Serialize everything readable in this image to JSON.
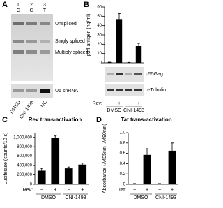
{
  "panel_a": {
    "letter": "A",
    "lane_numbers": [
      "1",
      "2",
      "3"
    ],
    "lane_codes": [
      "C",
      "C",
      "T"
    ],
    "band_labels": [
      "Unspliced",
      "Singly spliced",
      "Multiply spliced"
    ],
    "loading_label": "U6 snRNA",
    "lanes": [
      "DMSO",
      "CNI-1493",
      "NC"
    ]
  },
  "chart_data": [
    {
      "type": "bar",
      "panel": "B",
      "ylabel": "p24 antigen (ng/ml)",
      "categories": [
        "−",
        "+",
        "−",
        "+"
      ],
      "groups": [
        "DMSO",
        "CNI-1493"
      ],
      "row_label": "Rev:",
      "blot_labels": [
        "p55Gag",
        "α-Tubulin"
      ],
      "values": [
        0.5,
        47,
        0.3,
        18
      ],
      "errors": [
        0.2,
        6,
        0.2,
        3
      ],
      "color": "#000000",
      "ylim": [
        0,
        60
      ],
      "yticks": [
        0,
        10,
        20,
        30,
        40,
        50,
        60
      ]
    },
    {
      "type": "bar",
      "panel": "C",
      "title": "Rev trans-activation",
      "ylabel": "Luciferase (counts/10 s)",
      "categories": [
        "−",
        "+",
        "−",
        "+"
      ],
      "groups": [
        "DMSO",
        "CNI-1493"
      ],
      "row_label": "Rev:",
      "values": [
        290000,
        990000,
        340000,
        420000
      ],
      "errors": [
        50000,
        40000,
        30000,
        30000
      ],
      "color": "#000000",
      "ylim": [
        0,
        1100000
      ],
      "yticks": [
        0,
        {
          "value": 200000,
          "label": "200,000"
        },
        {
          "value": 400000,
          "label": "400,000"
        },
        {
          "value": 600000,
          "label": "600,000"
        },
        {
          "value": 800000,
          "label": "800,000"
        },
        {
          "value": 1000000,
          "label": "1,000,000"
        }
      ]
    },
    {
      "type": "bar",
      "panel": "D",
      "title": "Tat trans-activation",
      "ylabel": "Absorbance (A405nm–A490nm)",
      "categories": [
        "−",
        "+",
        "−",
        "+"
      ],
      "groups": [
        "DMSO",
        "CNI-1493"
      ],
      "row_label": "Tat:",
      "values": [
        0.01,
        0.57,
        0.01,
        0.65
      ],
      "errors": [
        0.005,
        0.12,
        0.005,
        0.15
      ],
      "color": "#000000",
      "ylim": [
        0,
        1
      ],
      "yticks": [
        0,
        0.2,
        0.4,
        0.6,
        0.8,
        {
          "value": 1,
          "label": "1.0"
        }
      ]
    }
  ]
}
